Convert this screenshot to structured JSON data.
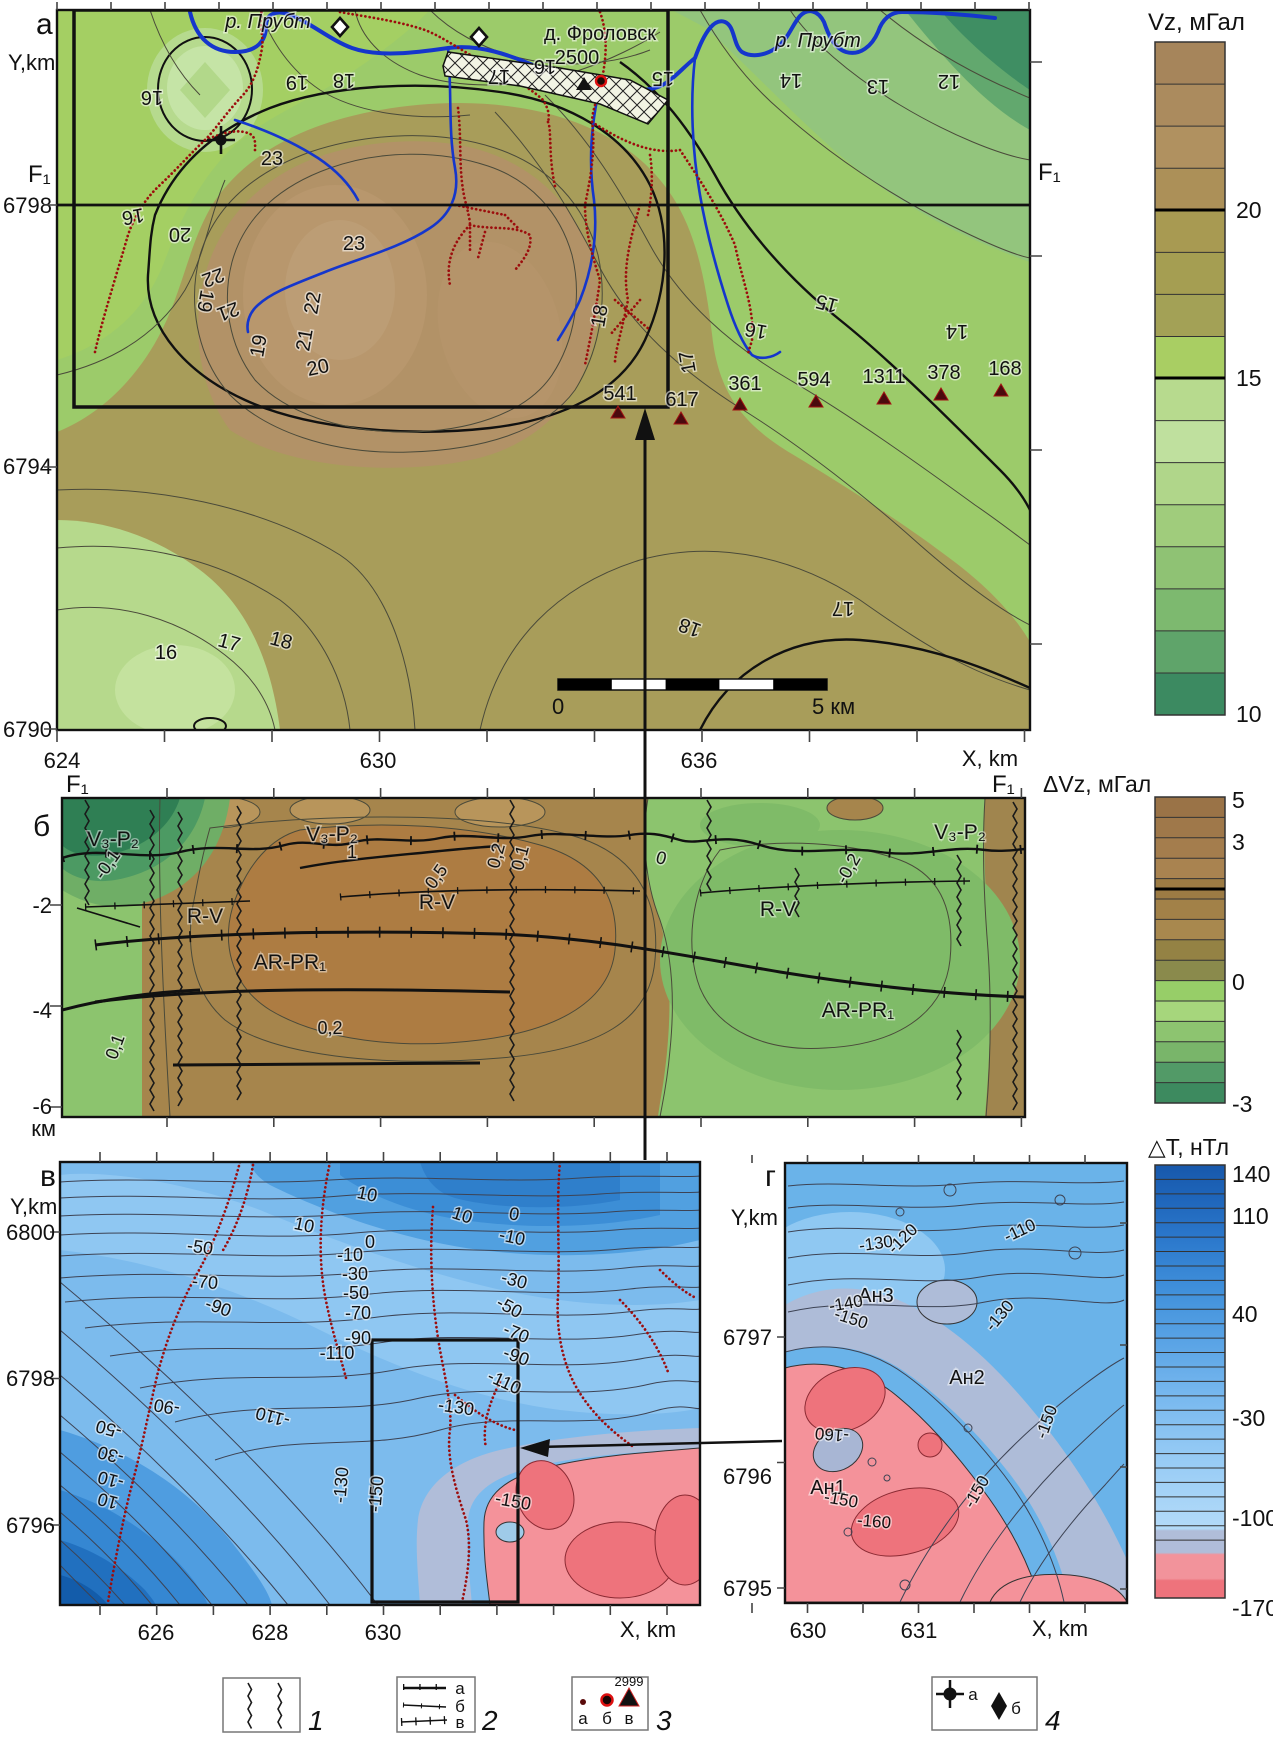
{
  "colors": {
    "river_blue": "#1536cc",
    "road_red": "#9c0d0d",
    "marker_red": "#dd1111",
    "vz_brown": "#ab8b5e",
    "vz_green": "#9ccb6a",
    "mag_blue": "#7cbbed",
    "mag_pink": "#f4929a"
  },
  "panel_a": {
    "label": "а",
    "y_axis_title": "Y,km",
    "x_axis_title": "X, km",
    "y_ticks": [
      "6798",
      "6794",
      "6790"
    ],
    "x_ticks": [
      "624",
      "630",
      "636"
    ],
    "f1_left": "F₁",
    "f1_right": "F₁",
    "river_label_1": "р. Прубт",
    "river_label_2": "р. Прубт",
    "village_name": "д. Фроловск",
    "village_number": "2500",
    "wells": [
      "541",
      "617",
      "361",
      "594",
      "1311",
      "378",
      "168"
    ],
    "contours": [
      "16",
      "19",
      "18",
      "17",
      "16",
      "15",
      "23",
      "16",
      "20",
      "19",
      "22",
      "21",
      "23",
      "22",
      "21",
      "20",
      "19",
      "18",
      "17",
      "14",
      "13",
      "12",
      "15",
      "16",
      "14",
      "18",
      "17",
      "16",
      "17",
      "18"
    ],
    "scale_start": "0",
    "scale_end": "5 км",
    "colorbar": {
      "title": "Vz, мГал",
      "ticks": [
        "20",
        "15",
        "10"
      ]
    }
  },
  "panel_b": {
    "label": "б",
    "y_ticks": [
      "-2",
      "-4",
      "-6"
    ],
    "y_unit": "км",
    "f1_left": "F₁",
    "f1_right": "F₁",
    "geo_labels": [
      "V₃-P₂",
      "V₃-P₂",
      "V₃-P₂",
      "R-V",
      "R-V",
      "R-V",
      "AR-PR₁",
      "AR-PR₁"
    ],
    "contours": [
      "-0,1",
      "1",
      "0,5",
      "0,2",
      "0,1",
      "0",
      "-0,2",
      "0,2",
      "0,1"
    ],
    "colorbar": {
      "title": "ΔVz,  мГал",
      "ticks": [
        "5",
        "3",
        "0",
        "-3"
      ]
    }
  },
  "panel_v": {
    "label": "в",
    "y_axis_title": "Y,km",
    "x_axis_title": "X, km",
    "y_ticks": [
      "6800",
      "6798",
      "6796"
    ],
    "x_ticks": [
      "626",
      "628",
      "630"
    ],
    "contours": [
      "10",
      "-50",
      "-70",
      "-90",
      "10",
      "0",
      "-10",
      "-30",
      "-50",
      "-70",
      "-90",
      "-110",
      "10",
      "0",
      "-10",
      "-30",
      "-50",
      "-70",
      "-90",
      "-110",
      "-130",
      "-110",
      "-90",
      "-50",
      "-30",
      "-10",
      "10",
      "-130",
      "-150",
      "-150"
    ]
  },
  "panel_g": {
    "label": "г",
    "y_axis_title": "Y,km",
    "x_axis_title": "X, km",
    "y_ticks": [
      "6797",
      "6796",
      "6795"
    ],
    "x_ticks": [
      "630",
      "631"
    ],
    "anomalies": [
      "Ан3",
      "Ан2",
      "Ан1"
    ],
    "contours": [
      "-110",
      "-120",
      "-130",
      "-140",
      "-150",
      "-130",
      "-160",
      "-150",
      "-160",
      "-150",
      "-150"
    ],
    "colorbar": {
      "title": "△T, нТл",
      "ticks": [
        "140",
        "110",
        "40",
        "-30",
        "-100",
        "-170"
      ]
    }
  },
  "legend": {
    "item1": {
      "num": "1"
    },
    "item2": {
      "num": "2",
      "labels": [
        "а",
        "б",
        "в"
      ]
    },
    "item3": {
      "num": "3",
      "labels": [
        "а",
        "б",
        "в"
      ],
      "well_number": "2999"
    },
    "item4": {
      "num": "4",
      "labels": [
        "а",
        "б"
      ]
    }
  }
}
